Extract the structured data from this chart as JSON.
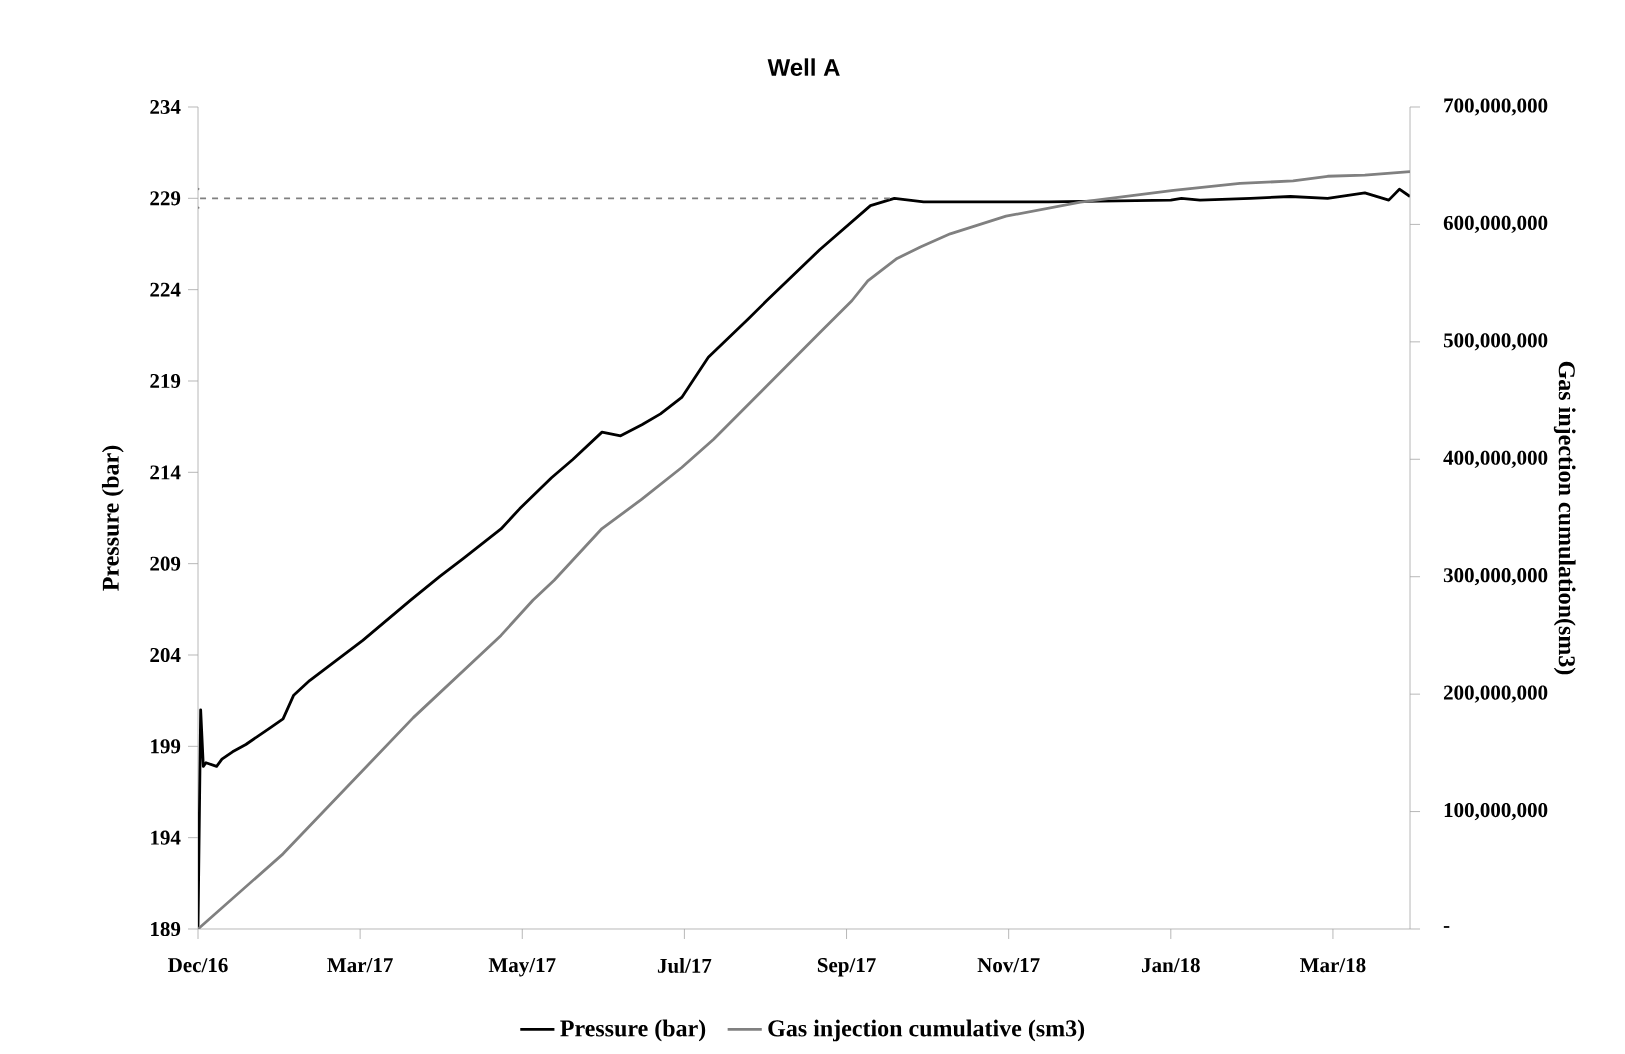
{
  "chart_data": {
    "type": "line",
    "title": "Well A",
    "ylabel": "Pressure (bar)",
    "y2label": "Gas injection cumulation(sm3)",
    "xlim": [
      "2016-12-31",
      "2018-04-01"
    ],
    "xticks": [
      {
        "value": "2016-12-31",
        "label": "Dec/16"
      },
      {
        "value": "2017-03-02",
        "label": "Mar/17"
      },
      {
        "value": "2017-05-02",
        "label": "May/17"
      },
      {
        "value": "2017-07-02",
        "label": "Jul/17"
      },
      {
        "value": "2017-09-01",
        "label": "Sep/17"
      },
      {
        "value": "2017-11-01",
        "label": "Nov/17"
      },
      {
        "value": "2018-01-01",
        "label": "Jan/18"
      },
      {
        "value": "2018-03-03",
        "label": "Mar/18"
      }
    ],
    "ylim": [
      189,
      234
    ],
    "yticks": [
      189,
      194,
      199,
      204,
      209,
      214,
      219,
      224,
      229,
      234
    ],
    "y2lim": [
      0,
      700000000
    ],
    "y2ticks": [
      {
        "value": 0,
        "label": "-"
      },
      {
        "value": 100000000,
        "label": "100,000,000"
      },
      {
        "value": 200000000,
        "label": "200,000,000"
      },
      {
        "value": 300000000,
        "label": "300,000,000"
      },
      {
        "value": 400000000,
        "label": "400,000,000"
      },
      {
        "value": 500000000,
        "label": "500,000,000"
      },
      {
        "value": 600000000,
        "label": "600,000,000"
      },
      {
        "value": 700000000,
        "label": "700,000,000"
      }
    ],
    "legend": "bottom",
    "series": [
      {
        "name": "Pressure (bar)",
        "color": "#000000",
        "axis": "y",
        "x": [
          "2016-12-31",
          "2017-01-01",
          "2017-01-02",
          "2017-01-03",
          "2017-01-07",
          "2017-01-09",
          "2017-01-13",
          "2017-01-18",
          "2017-01-23",
          "2017-01-27",
          "2017-02-01",
          "2017-02-05",
          "2017-02-11",
          "2017-03-03",
          "2017-03-21",
          "2017-04-01",
          "2017-04-10",
          "2017-04-24",
          "2017-05-01",
          "2017-05-13",
          "2017-05-21",
          "2017-06-01",
          "2017-06-08",
          "2017-06-16",
          "2017-06-23",
          "2017-07-01",
          "2017-07-11",
          "2017-07-26",
          "2017-08-02",
          "2017-08-22",
          "2017-09-10",
          "2017-09-19",
          "2017-09-30",
          "2017-11-16",
          "2018-01-01",
          "2018-01-05",
          "2018-01-12",
          "2018-01-31",
          "2018-02-15",
          "2018-03-01",
          "2018-03-15",
          "2018-03-24",
          "2018-03-28",
          "2018-04-01"
        ],
        "values": [
          189,
          201.0,
          197.9,
          198.1,
          197.9,
          198.3,
          198.7,
          199.1,
          199.6,
          200.0,
          200.5,
          201.8,
          202.6,
          204.8,
          207.0,
          208.3,
          209.3,
          210.9,
          212.0,
          213.7,
          214.7,
          216.2,
          216.0,
          216.6,
          217.2,
          218.1,
          220.3,
          222.4,
          223.4,
          226.2,
          228.6,
          229.0,
          228.8,
          228.8,
          228.9,
          229.0,
          228.9,
          229.0,
          229.1,
          229.0,
          229.3,
          228.9,
          229.5,
          229.1
        ]
      },
      {
        "name": "Gas injection cumulative (sm3)",
        "color": "#808080",
        "axis": "y2",
        "x": [
          "2016-12-31",
          "2017-02-01",
          "2017-03-22",
          "2017-04-24",
          "2017-05-06",
          "2017-05-14",
          "2017-06-01",
          "2017-06-16",
          "2017-07-01",
          "2017-07-13",
          "2017-08-22",
          "2017-09-03",
          "2017-09-09",
          "2017-09-20",
          "2017-09-29",
          "2017-10-10",
          "2017-10-31",
          "2017-11-28",
          "2018-01-02",
          "2018-01-27",
          "2018-02-16",
          "2018-03-01",
          "2018-03-15",
          "2018-04-01"
        ],
        "values": [
          0,
          64000000,
          180000000,
          250000000,
          280000000,
          297000000,
          341000000,
          366000000,
          393000000,
          417000000,
          508000000,
          535000000,
          552000000,
          571000000,
          581000000,
          592000000,
          607000000,
          619000000,
          629000000,
          635000000,
          637000000,
          641000000,
          642000000,
          645000000
        ]
      }
    ],
    "ref_lines": [
      {
        "axis": "y",
        "value": 229,
        "color": "#808080",
        "line_style": "dashed"
      }
    ]
  }
}
